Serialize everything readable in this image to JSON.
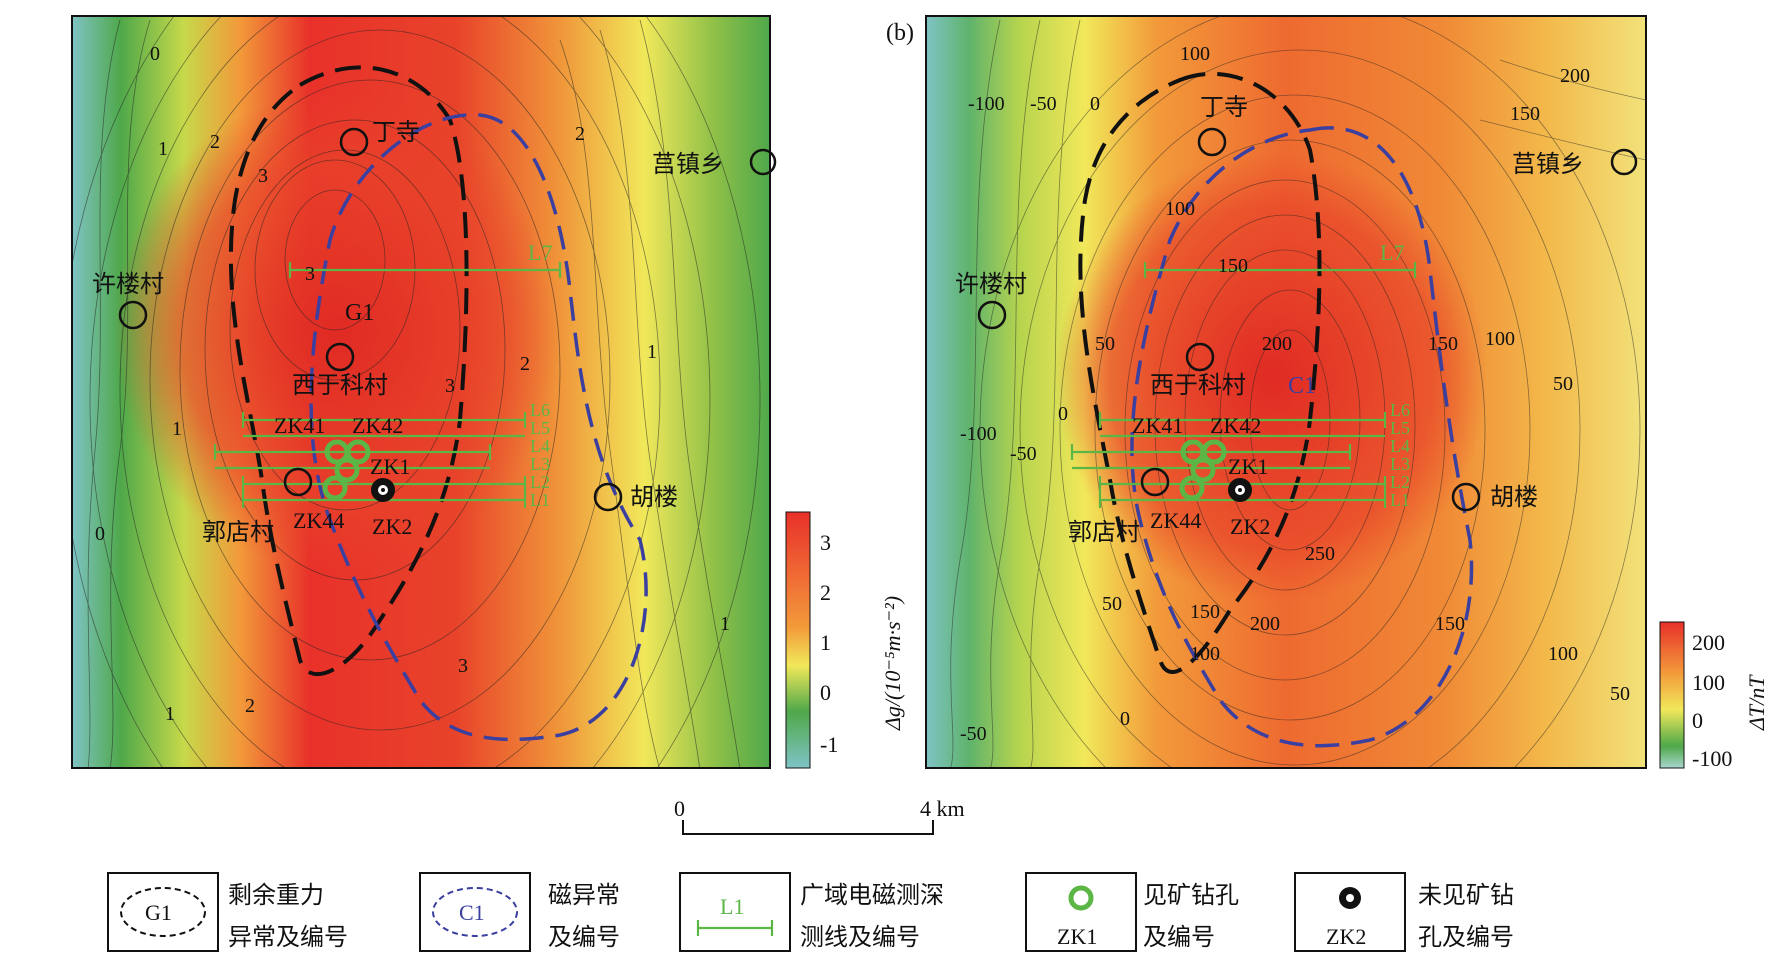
{
  "panel_a": {
    "places": [
      {
        "name": "丁寺"
      },
      {
        "name": "莒镇乡"
      },
      {
        "name": "许楼村"
      },
      {
        "name": "西于科村"
      },
      {
        "name": "郭店村"
      },
      {
        "name": "胡楼"
      }
    ],
    "anomaly_label": "G1",
    "line_label_top": "L7",
    "line_labels": [
      "L6",
      "L5",
      "L4",
      "L3",
      "L2",
      "L1"
    ],
    "wells": [
      "ZK41",
      "ZK42",
      "ZK1",
      "ZK44",
      "ZK2"
    ],
    "contour_labels": [
      "0",
      "1",
      "2",
      "2",
      "3",
      "3",
      "2",
      "3",
      "1",
      "1",
      "1",
      "2",
      "3",
      "1",
      "0"
    ],
    "colorbar": {
      "ticks": [
        "3",
        "2",
        "1",
        "0",
        "-1"
      ],
      "label": "Δg/(10⁻⁵m·s⁻²)"
    }
  },
  "panel_b": {
    "tag": "(b)",
    "places": [
      {
        "name": "丁寺"
      },
      {
        "name": "莒镇乡"
      },
      {
        "name": "许楼村"
      },
      {
        "name": "西于科村"
      },
      {
        "name": "郭店村"
      },
      {
        "name": "胡楼"
      }
    ],
    "anomaly_label": "C1",
    "line_label_top": "L7",
    "line_labels": [
      "L6",
      "L5",
      "L4",
      "L3",
      "L2",
      "L1"
    ],
    "wells": [
      "ZK41",
      "ZK42",
      "ZK1",
      "ZK44",
      "ZK2"
    ],
    "contour_labels": [
      "-100",
      "-50",
      "0",
      "50",
      "200",
      "150",
      "100",
      "150",
      "100",
      "50",
      "200",
      "150",
      "100",
      "-100",
      "-50",
      "0",
      "50",
      "150",
      "200",
      "150",
      "100",
      "250",
      "-50",
      "0",
      "50",
      "100"
    ],
    "colorbar": {
      "ticks": [
        "200",
        "100",
        "0",
        "-100"
      ],
      "label": "ΔT/nT"
    }
  },
  "scale_bar": {
    "start": "0",
    "end": "4 km"
  },
  "legend": [
    {
      "symbol": "G1",
      "text1": "剩余重力",
      "text2": "异常及编号"
    },
    {
      "symbol": "C1",
      "text1": "磁异常",
      "text2": "及编号"
    },
    {
      "symbol": "L1",
      "text1": "广域电磁测深",
      "text2": "测线及编号"
    },
    {
      "symbol": "ZK1",
      "text1": "见矿钻孔",
      "text2": "及编号"
    },
    {
      "symbol": "ZK2",
      "text1": "未见矿钻",
      "text2": "孔及编号"
    }
  ],
  "colors": {
    "red": "#e8312a",
    "orange": "#f29a3a",
    "yellow": "#f1e85a",
    "green": "#4fa84a",
    "cyan": "#7fc3c6",
    "anomaly_g": "#111111",
    "anomaly_c": "#3a3fa0",
    "survey_line": "#5cb646"
  }
}
